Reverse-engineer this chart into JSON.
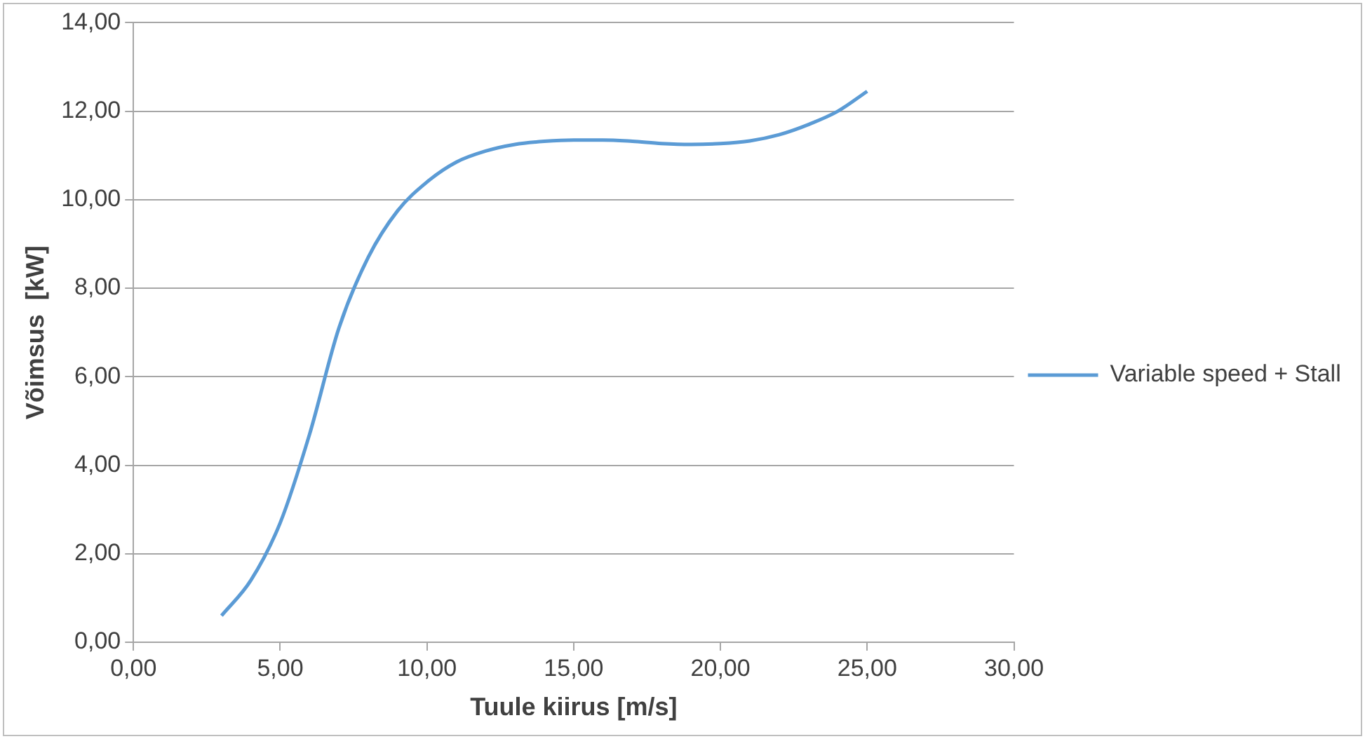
{
  "chart_data": {
    "type": "line",
    "xlabel": "Tuule kiirus [m/s]",
    "ylabel": "Võimsus  [kW]",
    "x": [
      3,
      4,
      5,
      6,
      7,
      8,
      9,
      10,
      11,
      12,
      13,
      14,
      15,
      16,
      17,
      18,
      19,
      20,
      21,
      22,
      23,
      24,
      25
    ],
    "series": [
      {
        "name": "Variable speed + Stall",
        "color": "#5b9bd5",
        "values": [
          0.6,
          1.4,
          2.7,
          4.7,
          7.1,
          8.7,
          9.75,
          10.4,
          10.85,
          11.1,
          11.25,
          11.32,
          11.35,
          11.35,
          11.32,
          11.27,
          11.25,
          11.27,
          11.33,
          11.47,
          11.7,
          12.0,
          12.45
        ]
      }
    ],
    "xlim": [
      0,
      30
    ],
    "xticks": [
      {
        "value": 0,
        "label": "0,00"
      },
      {
        "value": 5,
        "label": "5,00"
      },
      {
        "value": 10,
        "label": "10,00"
      },
      {
        "value": 15,
        "label": "15,00"
      },
      {
        "value": 20,
        "label": "20,00"
      },
      {
        "value": 25,
        "label": "25,00"
      },
      {
        "value": 30,
        "label": "30,00"
      }
    ],
    "ylim": [
      0,
      14
    ],
    "yticks": [
      {
        "value": 0,
        "label": "0,00"
      },
      {
        "value": 2,
        "label": "2,00"
      },
      {
        "value": 4,
        "label": "4,00"
      },
      {
        "value": 6,
        "label": "6,00"
      },
      {
        "value": 8,
        "label": "8,00"
      },
      {
        "value": 10,
        "label": "10,00"
      },
      {
        "value": 12,
        "label": "12,00"
      },
      {
        "value": 14,
        "label": "14,00"
      }
    ],
    "grid": "y",
    "legend": "right",
    "marker": "none",
    "line_style": "solid"
  }
}
